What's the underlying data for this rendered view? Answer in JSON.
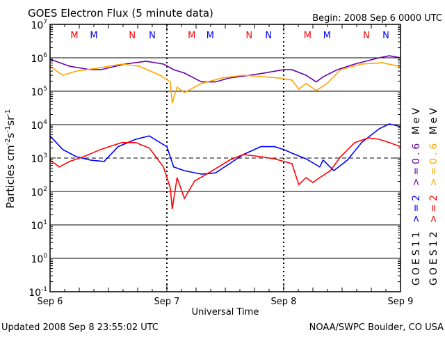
{
  "header": {
    "title": "GOES Electron Flux (5 minute data)",
    "begin": "Begin: 2008 Sep 6 0000 UTC"
  },
  "footer": {
    "updated": "Updated 2008 Sep  8 23:55:02 UTC",
    "credit": "NOAA/SWPC Boulder, CO USA"
  },
  "chart_data": {
    "type": "line",
    "title": "GOES Electron Flux (5 minute data)",
    "xlabel": "Universal Time",
    "ylabel": "Particles cm-2 s-1 sr-1",
    "ylabel_parts": {
      "base": "Particles cm",
      "e1": "-2",
      "s": "s",
      "e2": "-1",
      "sr": "sr",
      "e3": "-1"
    },
    "xlim_hours": [
      0,
      72
    ],
    "ylim": [
      0.1,
      10000000
    ],
    "yscale": "log",
    "x_ticks": [
      {
        "h": 0,
        "label": "Sep 6"
      },
      {
        "h": 24,
        "label": "Sep 7"
      },
      {
        "h": 48,
        "label": "Sep 8"
      },
      {
        "h": 72,
        "label": "Sep 9"
      }
    ],
    "y_ticks": [
      {
        "exp": 7,
        "label": "10",
        "sup": "7"
      },
      {
        "exp": 6,
        "label": "10",
        "sup": "6"
      },
      {
        "exp": 5,
        "label": "10",
        "sup": "5"
      },
      {
        "exp": 4,
        "label": "10",
        "sup": "4"
      },
      {
        "exp": 3,
        "label": "10",
        "sup": "3"
      },
      {
        "exp": 2,
        "label": "10",
        "sup": "2"
      },
      {
        "exp": 1,
        "label": "10",
        "sup": "1"
      },
      {
        "exp": 0,
        "label": "10",
        "sup": "0"
      },
      {
        "exp": -1,
        "label": "10",
        "sup": "-1"
      }
    ],
    "threshold_dashed": 1000,
    "markers": [
      {
        "h": 5,
        "label": "M",
        "color": "#ff0000"
      },
      {
        "h": 9,
        "label": "M",
        "color": "#0000ff"
      },
      {
        "h": 16.9,
        "label": "N",
        "color": "#ff0000"
      },
      {
        "h": 21,
        "label": "N",
        "color": "#0000ff"
      },
      {
        "h": 29.1,
        "label": "M",
        "color": "#ff0000"
      },
      {
        "h": 32.9,
        "label": "M",
        "color": "#0000ff"
      },
      {
        "h": 40.9,
        "label": "N",
        "color": "#ff0000"
      },
      {
        "h": 44.9,
        "label": "N",
        "color": "#0000ff"
      },
      {
        "h": 52.9,
        "label": "M",
        "color": "#ff0000"
      },
      {
        "h": 56.9,
        "label": "M",
        "color": "#0000ff"
      },
      {
        "h": 65,
        "label": "N",
        "color": "#ff0000"
      },
      {
        "h": 69,
        "label": "N",
        "color": "#0000ff"
      }
    ],
    "legend": {
      "placement": "right",
      "satellites": [
        {
          "name": "GOES11",
          "low": ">=2",
          "high": ">=0.6",
          "low_color": "#0000ff",
          "high_color": "#6600aa",
          "unit": "MeV"
        },
        {
          "name": "GOES12",
          "low": ">=2",
          "high": ">=0.6",
          "low_color": "#ff0000",
          "high_color": "#ffa500",
          "unit": "MeV"
        }
      ]
    },
    "series": [
      {
        "name": "GOES11 >=0.6 MeV",
        "color": "#6600aa",
        "x": [
          0,
          4,
          8.3,
          10.4,
          15.4,
          19.7,
          23.3,
          25.4,
          27.6,
          31.1,
          34,
          36.9,
          41.1,
          44,
          48,
          49.7,
          52.6,
          54.7,
          56.1,
          59,
          62.6,
          67.6,
          69.7,
          72
        ],
        "y": [
          910000,
          560000,
          440000,
          440000,
          650000,
          790000,
          650000,
          440000,
          350000,
          190000,
          190000,
          250000,
          300000,
          350000,
          440000,
          440000,
          300000,
          190000,
          270000,
          440000,
          650000,
          1000000,
          1150000,
          1000000
        ]
      },
      {
        "name": "GOES12 >=0.6 MeV",
        "color": "#ffa500",
        "x": [
          0,
          2.6,
          5.4,
          9.7,
          14.7,
          18.3,
          22.6,
          24.7,
          25.1,
          26.1,
          27.6,
          31.1,
          35.4,
          39.7,
          44,
          46.9,
          49.7,
          51.1,
          52.6,
          54.7,
          56.9,
          59.7,
          64,
          68.3,
          72
        ],
        "y": [
          560000,
          300000,
          400000,
          490000,
          650000,
          560000,
          300000,
          190000,
          44000,
          133000,
          91000,
          170000,
          250000,
          300000,
          270000,
          250000,
          215000,
          115000,
          170000,
          105000,
          170000,
          440000,
          650000,
          710000,
          540000
        ]
      },
      {
        "name": "GOES11 >=2 MeV",
        "color": "#0000ff",
        "x": [
          0,
          2.6,
          5.4,
          8.3,
          11.1,
          14,
          17.6,
          20.4,
          22.6,
          24,
          25.4,
          27.6,
          31.1,
          34,
          36.9,
          39.7,
          43.3,
          46.1,
          48,
          49.7,
          52.6,
          55.4,
          56.1,
          58.3,
          61.1,
          64,
          67.6,
          69.7,
          72
        ],
        "y": [
          4600,
          1800,
          1100,
          870,
          790,
          2200,
          3650,
          4600,
          2900,
          2200,
          540,
          420,
          330,
          360,
          680,
          1270,
          2200,
          2200,
          1800,
          1400,
          950,
          540,
          870,
          420,
          870,
          2900,
          7500,
          10500,
          8700
        ]
      },
      {
        "name": "GOES12 >=2 MeV",
        "color": "#ff0000",
        "x": [
          0,
          1.9,
          4,
          6.9,
          10.4,
          14.7,
          17.6,
          20.4,
          23.3,
          24.7,
          25.1,
          26.1,
          27.6,
          29.7,
          32.6,
          36.9,
          39.7,
          43.3,
          46.1,
          49.7,
          51.1,
          52.6,
          54,
          55.4,
          57.6,
          59.7,
          62.6,
          65.4,
          67.6,
          69.7,
          72
        ],
        "y": [
          870,
          540,
          790,
          1100,
          1800,
          2900,
          2900,
          2000,
          540,
          127,
          30,
          260,
          62,
          205,
          360,
          870,
          1270,
          1100,
          950,
          680,
          160,
          260,
          186,
          260,
          420,
          1100,
          2900,
          4000,
          3650,
          2900,
          2200
        ]
      }
    ]
  }
}
